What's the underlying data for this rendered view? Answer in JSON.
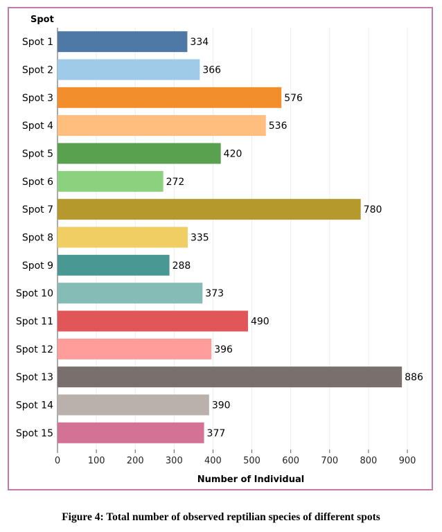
{
  "caption": "Figure 4: Total number of observed reptilian species of different spots",
  "chart_data": {
    "type": "bar",
    "orientation": "horizontal",
    "y_header": "Spot",
    "xlabel": "Number of Individual",
    "xlim": [
      0,
      900
    ],
    "xticks": [
      0,
      100,
      200,
      300,
      400,
      500,
      600,
      700,
      800,
      900
    ],
    "grid": true,
    "categories": [
      "Spot 1",
      "Spot 2",
      "Spot 3",
      "Spot 4",
      "Spot 5",
      "Spot 6",
      "Spot 7",
      "Spot 8",
      "Spot 9",
      "Spot 10",
      "Spot 11",
      "Spot 12",
      "Spot 13",
      "Spot 14",
      "Spot 15"
    ],
    "values": [
      334,
      366,
      576,
      536,
      420,
      272,
      780,
      335,
      288,
      373,
      490,
      396,
      886,
      390,
      377
    ],
    "colors": [
      "#4e79a7",
      "#a0cbe8",
      "#f28e2b",
      "#ffbe7d",
      "#59a14f",
      "#8cd17d",
      "#b6992d",
      "#f1ce63",
      "#499894",
      "#86bcb6",
      "#e15759",
      "#ff9d9a",
      "#79706e",
      "#bab0ac",
      "#d37295"
    ]
  }
}
